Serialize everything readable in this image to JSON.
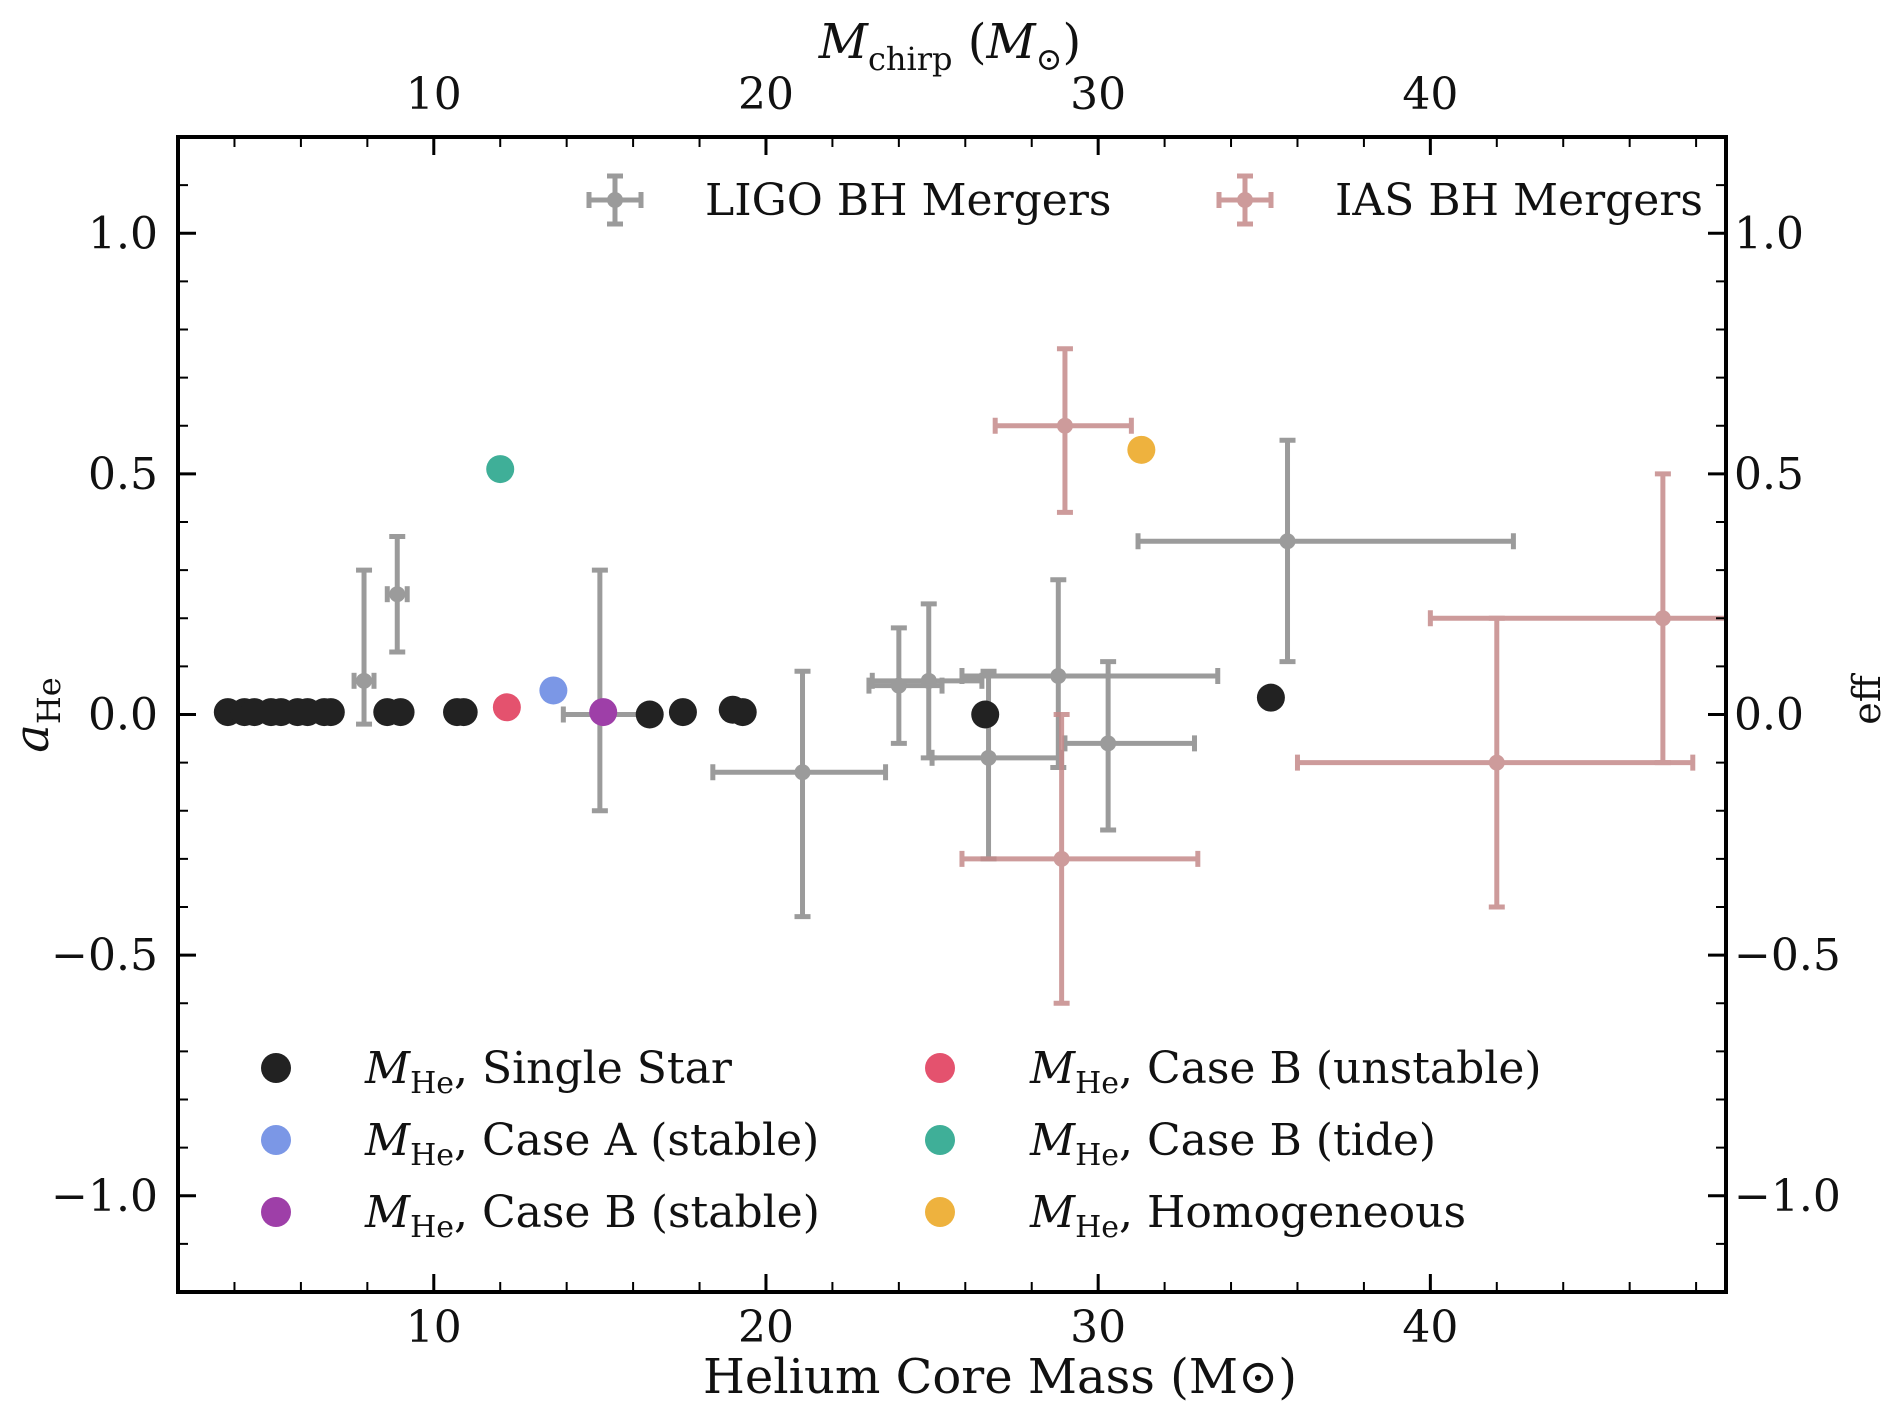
{
  "chart_data": {
    "type": "scatter",
    "xlabel": "Helium Core Mass (M⊙)",
    "ylabel": "aHe",
    "top_xlabel": "Mchirp (M⊙)",
    "right_ylabel": "eff",
    "xlim": [
      2.3,
      48.9
    ],
    "ylim": [
      -1.2,
      1.2
    ],
    "x_ticks": [
      10,
      20,
      30,
      40
    ],
    "x_tick_labels": [
      "10",
      "20",
      "30",
      "40"
    ],
    "y_ticks": [
      -1.0,
      -0.5,
      0.0,
      0.5,
      1.0
    ],
    "y_tick_labels": [
      "−1.0",
      "−0.5",
      "0.0",
      "0.5",
      "1.0"
    ],
    "grid": false,
    "series": [
      {
        "name": "MHe, Single Star",
        "label_main": "M",
        "label_sub": "He",
        "label_rest": ", Single Star",
        "color": "#222222",
        "points": [
          {
            "x": 3.8,
            "y": 0.005
          },
          {
            "x": 4.3,
            "y": 0.005
          },
          {
            "x": 4.6,
            "y": 0.005
          },
          {
            "x": 5.1,
            "y": 0.005
          },
          {
            "x": 5.4,
            "y": 0.005
          },
          {
            "x": 5.9,
            "y": 0.005
          },
          {
            "x": 6.2,
            "y": 0.005
          },
          {
            "x": 6.7,
            "y": 0.005
          },
          {
            "x": 6.9,
            "y": 0.005
          },
          {
            "x": 8.6,
            "y": 0.005
          },
          {
            "x": 9.0,
            "y": 0.005
          },
          {
            "x": 10.7,
            "y": 0.005
          },
          {
            "x": 10.9,
            "y": 0.005
          },
          {
            "x": 16.5,
            "y": 0.0
          },
          {
            "x": 17.5,
            "y": 0.005
          },
          {
            "x": 19.0,
            "y": 0.01
          },
          {
            "x": 19.3,
            "y": 0.005
          },
          {
            "x": 26.6,
            "y": 0.0
          },
          {
            "x": 35.2,
            "y": 0.035
          }
        ]
      },
      {
        "name": "MHe, Case A (stable)",
        "label_main": "M",
        "label_sub": "He",
        "label_rest": ", Case A (stable)",
        "color": "#7B97E6",
        "points": [
          {
            "x": 13.6,
            "y": 0.05
          }
        ]
      },
      {
        "name": "MHe, Case B (stable)",
        "label_main": "M",
        "label_sub": "He",
        "label_rest": ", Case B (stable)",
        "color": "#9E3FA8",
        "points": [
          {
            "x": 15.1,
            "y": 0.005
          }
        ]
      },
      {
        "name": "MHe, Case B (unstable)",
        "label_main": "M",
        "label_sub": "He",
        "label_rest": ", Case B (unstable)",
        "color": "#E4526E",
        "points": [
          {
            "x": 12.2,
            "y": 0.015
          }
        ]
      },
      {
        "name": "MHe, Case B (tide)",
        "label_main": "M",
        "label_sub": "He",
        "label_rest": ", Case B (tide)",
        "color": "#3FAF98",
        "points": [
          {
            "x": 12.0,
            "y": 0.51
          }
        ]
      },
      {
        "name": "MHe, Homogeneous",
        "label_main": "M",
        "label_sub": "He",
        "label_rest": ", Homogeneous",
        "color": "#EEB23E",
        "points": [
          {
            "x": 31.3,
            "y": 0.55
          }
        ]
      }
    ],
    "error_series": [
      {
        "name": "LIGO BH Mergers",
        "color": "#8A8A8A",
        "points": [
          {
            "x": 7.9,
            "y": 0.07,
            "xmin": 7.6,
            "xmax": 8.2,
            "ymin": -0.02,
            "ymax": 0.3
          },
          {
            "x": 8.9,
            "y": 0.25,
            "xmin": 8.6,
            "xmax": 9.2,
            "ymin": 0.13,
            "ymax": 0.37
          },
          {
            "x": 15.0,
            "y": 0.0,
            "xmin": 13.9,
            "xmax": 16.4,
            "ymin": -0.2,
            "ymax": 0.3
          },
          {
            "x": 21.1,
            "y": -0.12,
            "xmin": 18.4,
            "xmax": 23.6,
            "ymin": -0.42,
            "ymax": 0.09
          },
          {
            "x": 24.0,
            "y": 0.06,
            "xmin": 23.1,
            "xmax": 25.3,
            "ymin": -0.06,
            "ymax": 0.18
          },
          {
            "x": 24.9,
            "y": 0.07,
            "xmin": 23.2,
            "xmax": 26.5,
            "ymin": -0.09,
            "ymax": 0.23
          },
          {
            "x": 26.7,
            "y": -0.09,
            "xmin": 25.0,
            "xmax": 28.9,
            "ymin": -0.3,
            "ymax": 0.09
          },
          {
            "x": 28.8,
            "y": 0.08,
            "xmin": 25.9,
            "xmax": 33.6,
            "ymin": -0.11,
            "ymax": 0.28
          },
          {
            "x": 30.3,
            "y": -0.06,
            "xmin": 29.0,
            "xmax": 32.9,
            "ymin": -0.24,
            "ymax": 0.11
          },
          {
            "x": 35.7,
            "y": 0.36,
            "xmin": 31.2,
            "xmax": 42.5,
            "ymin": 0.11,
            "ymax": 0.57
          }
        ]
      },
      {
        "name": "IAS BH Mergers",
        "color": "#C58A8A",
        "points": [
          {
            "x": 29.0,
            "y": 0.6,
            "xmin": 26.9,
            "xmax": 31.0,
            "ymin": 0.42,
            "ymax": 0.76
          },
          {
            "x": 28.9,
            "y": -0.3,
            "xmin": 25.9,
            "xmax": 33.0,
            "ymin": -0.6,
            "ymax": 0.0
          },
          {
            "x": 42.0,
            "y": -0.1,
            "xmin": 36.0,
            "xmax": 47.9,
            "ymin": -0.4,
            "ymax": 0.2
          },
          {
            "x": 47.0,
            "y": 0.2,
            "xmin": 40.0,
            "xmax": 49.0,
            "ymin": -0.1,
            "ymax": 0.5
          }
        ]
      }
    ],
    "legend_placement": {
      "error_series": "top",
      "series": "bottom"
    }
  }
}
